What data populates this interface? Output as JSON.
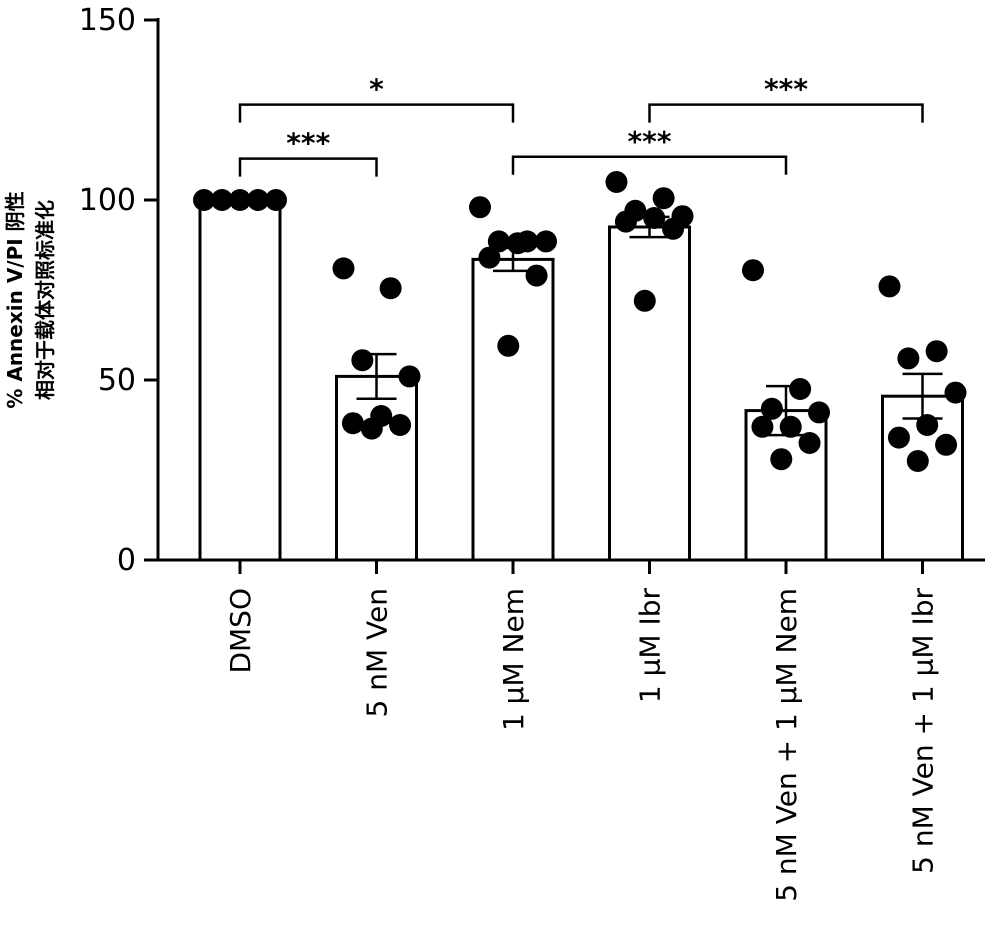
{
  "chart_data": {
    "type": "bar",
    "ylabel_lines": [
      "% Annexin V/PI 阴性",
      "相对于载体对照标准化"
    ],
    "ylim": [
      0,
      150
    ],
    "yticks": [
      0,
      50,
      100,
      150
    ],
    "categories": [
      "DMSO",
      "5 nM Ven",
      "1 μM Nem",
      "1 μM Ibr",
      "5 nM Ven + 1 μM Nem",
      "5 nM Ven + 1 μM Ibr"
    ],
    "values": [
      100,
      51,
      83.5,
      92.5,
      41.5,
      45.5
    ],
    "error": [
      0,
      6.2,
      3.2,
      2.8,
      6.8,
      6.2
    ],
    "points": [
      [
        100,
        100,
        100,
        100,
        100
      ],
      [
        81,
        75.5,
        55.5,
        51,
        40,
        38,
        37.5,
        36.5
      ],
      [
        98,
        88.5,
        88.5,
        88.5,
        88,
        84,
        79,
        59.5
      ],
      [
        105,
        100.5,
        97,
        95.5,
        95,
        94,
        92,
        72
      ],
      [
        80.5,
        47.5,
        42,
        41,
        37,
        37,
        32.5,
        28
      ],
      [
        76,
        58,
        56,
        46.5,
        37.5,
        34,
        32,
        27.5
      ]
    ],
    "comparisons": [
      {
        "from": 0,
        "to": 1,
        "y": 111.5,
        "label": "***"
      },
      {
        "from": 0,
        "to": 2,
        "y": 126.5,
        "label": "*"
      },
      {
        "from": 2,
        "to": 4,
        "y": 112,
        "label": "***"
      },
      {
        "from": 3,
        "to": 5,
        "y": 126.5,
        "label": "***"
      }
    ],
    "grid": false,
    "legend": "none"
  }
}
